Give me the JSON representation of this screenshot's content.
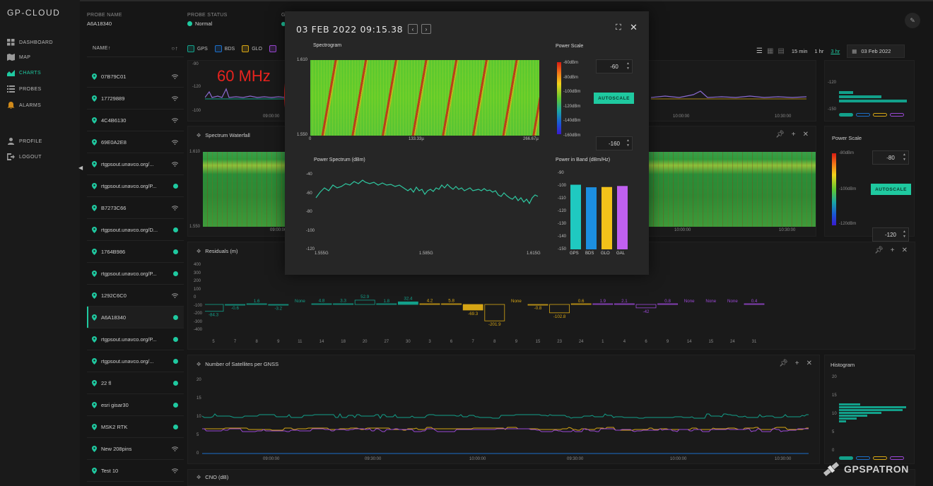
{
  "app": {
    "title": "GP-CLOUD",
    "brand": "GPSPATRON"
  },
  "sidebar": {
    "items": [
      {
        "label": "DASHBOARD",
        "icon": "dashboard-icon"
      },
      {
        "label": "MAP",
        "icon": "map-icon"
      },
      {
        "label": "CHARTS",
        "icon": "chart-icon",
        "active": true
      },
      {
        "label": "PROBES",
        "icon": "list-icon"
      },
      {
        "label": "ALARMS",
        "icon": "bell-icon"
      },
      {
        "label": "PROFILE",
        "icon": "user-icon"
      },
      {
        "label": "LOGOUT",
        "icon": "logout-icon"
      }
    ]
  },
  "probe": {
    "name_label": "PROBE NAME",
    "name_value": "A6A18340",
    "status_label": "PROBE STATUS",
    "status_value": "Normal",
    "g_label": "G"
  },
  "probe_list": {
    "header": "NAME↑",
    "rows": [
      {
        "name": "07B79C01",
        "indicator": "wifi"
      },
      {
        "name": "17729889",
        "indicator": "wifi"
      },
      {
        "name": "4C4B6130",
        "indicator": "wifi"
      },
      {
        "name": "69E0A2E8",
        "indicator": "wifi"
      },
      {
        "name": "rtgpsout.unavco.org/...",
        "indicator": "wifi"
      },
      {
        "name": "rtgpsout.unavco.org/P...",
        "indicator": "dot"
      },
      {
        "name": "B7273C66",
        "indicator": "wifi"
      },
      {
        "name": "rtgpsout.unavco.org/D...",
        "indicator": "dot"
      },
      {
        "name": "1764B986",
        "indicator": "dot"
      },
      {
        "name": "rtgpsout.unavco.org/P...",
        "indicator": "dot"
      },
      {
        "name": "1292C6C0",
        "indicator": "wifi"
      },
      {
        "name": "A6A18340",
        "indicator": "dot",
        "selected": true
      },
      {
        "name": "rtgpsout.unavco.org/P...",
        "indicator": "dot"
      },
      {
        "name": "rtgpsout.unavco.org/...",
        "indicator": "dot"
      },
      {
        "name": "22 fl",
        "indicator": "dot"
      },
      {
        "name": "esri gisar30",
        "indicator": "dot"
      },
      {
        "name": "MSK2 RTK",
        "indicator": "dot"
      },
      {
        "name": "New 208pins",
        "indicator": "wifi"
      },
      {
        "name": "Test 10",
        "indicator": "wifi"
      }
    ]
  },
  "legend": [
    {
      "name": "GPS",
      "color": "#12a08a"
    },
    {
      "name": "BDS",
      "color": "#1c6fc9"
    },
    {
      "name": "GLO",
      "color": "#d6a514"
    },
    {
      "name": "",
      "color": "#9b48d6"
    }
  ],
  "toolbar": {
    "ranges": [
      "15 min",
      "1 hr",
      "3 hr"
    ],
    "active_range": "3 hr",
    "date": "03 Feb 2022"
  },
  "panels": {
    "top_chart": {
      "yticks": [
        "-90",
        "-120",
        "-100"
      ],
      "xticks": [
        "09:00:00",
        "10:00:00",
        "10:30:00"
      ],
      "hist_ticks": [
        "-120",
        "-150"
      ]
    },
    "waterfall": {
      "title": "Spectrum Waterfall",
      "yticks": [
        "1.610",
        "1.550"
      ],
      "xticks": [
        "09:00:00",
        "10:00:00",
        "10:30:00"
      ]
    },
    "waterfall_scale": {
      "title": "Power Scale",
      "top_value": "-80",
      "bottom_value": "-120",
      "autoscale": "AUTOSCALE",
      "ticks": [
        "-80dBm",
        "-100dBm",
        "-120dBm"
      ]
    },
    "residuals": {
      "title": "Residuals (m)",
      "yticks": [
        "400",
        "300",
        "200",
        "100",
        "0",
        "-100",
        "-200",
        "-300",
        "-400"
      ],
      "xticks": [
        "5",
        "7",
        "8",
        "9",
        "11",
        "14",
        "18",
        "20",
        "27",
        "30",
        "3",
        "6",
        "7",
        "8",
        "9",
        "15",
        "23",
        "24",
        "1",
        "4",
        "6",
        "9",
        "14",
        "15",
        "24",
        "31"
      ],
      "labels": [
        "-84.3",
        "-0.6",
        "1.6",
        "-3.2",
        "None",
        "4.8",
        "3.3",
        "52.9",
        "1.8",
        "32.4",
        "4.2",
        "5.8",
        "-69.3",
        "-201.9",
        "None",
        "-0.8",
        "-102.8",
        "0.6",
        "1.9",
        "2.1",
        "-42",
        "0.8",
        "None",
        "None",
        "None",
        "0.4"
      ]
    },
    "satellites": {
      "title": "Number of Satellites per GNSS",
      "yticks": [
        "20",
        "15",
        "10",
        "5",
        "0"
      ],
      "xticks": [
        "09:00:00",
        "09:30:00",
        "10:00:00",
        "09:30:00",
        "10:00:00",
        "10:30:00"
      ]
    },
    "histogram": {
      "title": "Histogram",
      "ticks": [
        "20",
        "15",
        "10",
        "5",
        "0"
      ]
    },
    "cno": {
      "title": "CNO (dB)"
    }
  },
  "modal": {
    "title": "03 FEB 2022 09:15.38",
    "spectrogram": {
      "title": "Spectrogram",
      "yticks": [
        "1.610",
        "1.550"
      ],
      "xticks": [
        "0",
        "133.33µ",
        "266.67µ"
      ]
    },
    "power_scale": {
      "title": "Power Scale",
      "top_value": "-60",
      "bottom_value": "-160",
      "autoscale": "AUTOSCALE",
      "ticks": [
        "-60dBm",
        "-80dBm",
        "-100dBm",
        "-120dBm",
        "-140dBm",
        "-160dBm"
      ]
    },
    "power_spectrum": {
      "title": "Power Spectrum (dBm)",
      "yticks": [
        "-40",
        "-60",
        "-80",
        "-100",
        "-120"
      ],
      "xticks": [
        "1.555G",
        "1.585G",
        "1.615G"
      ]
    },
    "power_band": {
      "title": "Power in Band (dBm/Hz)",
      "yticks": [
        "-90",
        "-100",
        "-110",
        "-120",
        "-130",
        "-140",
        "-150"
      ],
      "categories": [
        "GPS",
        "BDS",
        "GLO",
        "GAL"
      ],
      "values": [
        -97.5,
        -99.5,
        -99.3,
        -98.5
      ],
      "colors": [
        "#1fc9c0",
        "#1c8fe0",
        "#f2c21a",
        "#c060f0"
      ]
    }
  },
  "annotation": "60 MHz",
  "chart_data": {
    "type": "bar",
    "title": "Power in Band (dBm/Hz)",
    "categories": [
      "GPS",
      "BDS",
      "GLO",
      "GAL"
    ],
    "values": [
      -97.5,
      -99.5,
      -99.3,
      -98.5
    ],
    "ylim": [
      -150,
      -90
    ]
  }
}
